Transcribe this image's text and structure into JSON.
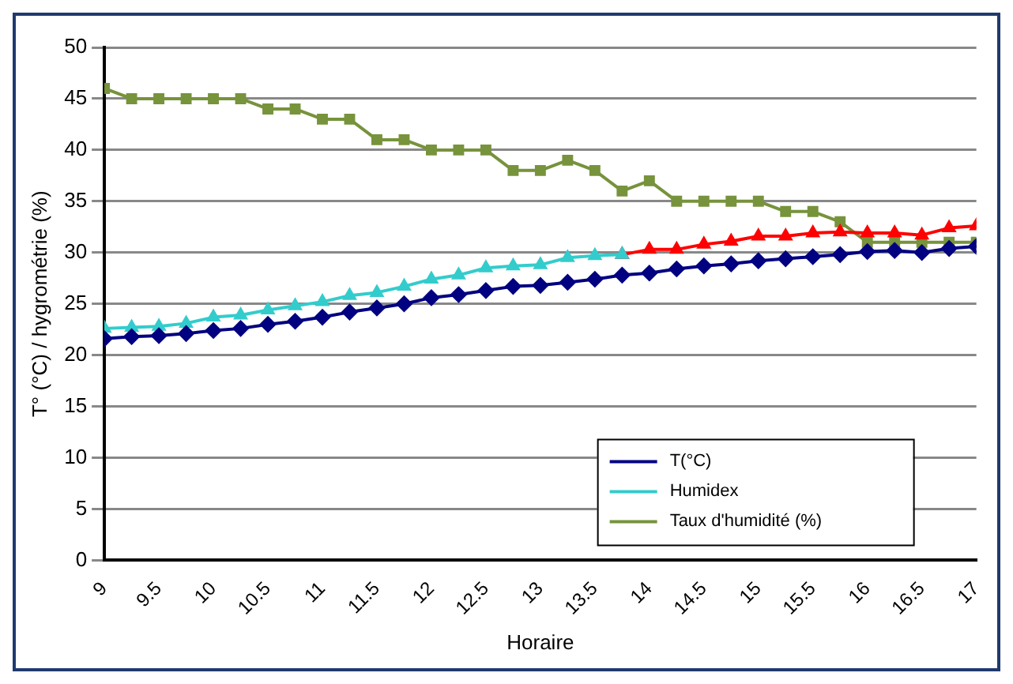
{
  "chart_data": {
    "type": "line",
    "xlabel": "Horaire",
    "ylabel": "T° (°C) / hygrométrie (%)",
    "x": [
      9,
      9.25,
      9.5,
      9.75,
      10,
      10.25,
      10.5,
      10.75,
      11,
      11.25,
      11.5,
      11.75,
      12,
      12.25,
      12.5,
      12.75,
      13,
      13.25,
      13.5,
      13.75,
      14,
      14.25,
      14.5,
      14.75,
      15,
      15.25,
      15.5,
      15.75,
      16,
      16.25,
      16.5,
      16.75,
      17
    ],
    "series": [
      {
        "name": "T(°C)",
        "color": "#000080",
        "marker": "diamond",
        "values": [
          21.6,
          21.8,
          21.9,
          22.1,
          22.4,
          22.6,
          23.0,
          23.3,
          23.7,
          24.2,
          24.6,
          25.0,
          25.6,
          25.9,
          26.3,
          26.7,
          26.8,
          27.1,
          27.4,
          27.8,
          28.0,
          28.4,
          28.7,
          28.9,
          29.2,
          29.4,
          29.6,
          29.8,
          30.1,
          30.2,
          30.0,
          30.4,
          30.6
        ]
      },
      {
        "name": "Humidex",
        "color": "#33cccc",
        "marker": "triangle",
        "values": [
          22.6,
          22.7,
          22.8,
          23.1,
          23.7,
          23.9,
          24.4,
          24.8,
          25.2,
          25.8,
          26.1,
          26.7,
          27.4,
          27.8,
          28.5,
          28.7,
          28.8,
          29.5,
          29.7,
          29.8,
          null,
          null,
          null,
          null,
          null,
          null,
          null,
          null,
          null,
          null,
          null,
          null,
          null
        ]
      },
      {
        "color": "#ff0000",
        "marker": "triangle",
        "values": [
          null,
          null,
          null,
          null,
          null,
          null,
          null,
          null,
          null,
          null,
          null,
          null,
          null,
          null,
          null,
          null,
          null,
          null,
          null,
          29.8,
          30.3,
          30.3,
          30.8,
          31.1,
          31.6,
          31.6,
          31.9,
          32.0,
          31.9,
          31.9,
          31.7,
          32.4,
          32.6
        ]
      },
      {
        "name": "Taux d'humidité (%)",
        "color": "#77933c",
        "marker": "square",
        "values": [
          46,
          45,
          45,
          45,
          45,
          45,
          44,
          44,
          43,
          43,
          41,
          41,
          40,
          40,
          40,
          38,
          38,
          39,
          38,
          36,
          37,
          35,
          35,
          35,
          35,
          34,
          34,
          33,
          31,
          31,
          31,
          31,
          31
        ]
      }
    ],
    "xlim": [
      9,
      17
    ],
    "xticks": [
      9,
      9.5,
      10,
      10.5,
      11,
      11.5,
      12,
      12.5,
      13,
      13.5,
      14,
      14.5,
      15,
      15.5,
      16,
      16.5,
      17
    ],
    "ylim": [
      0,
      50
    ],
    "yticks": [
      0,
      5,
      10,
      15,
      20,
      25,
      30,
      35,
      40,
      45,
      50
    ],
    "grid": "y",
    "legend": "bottom right",
    "line_style": "solid"
  }
}
